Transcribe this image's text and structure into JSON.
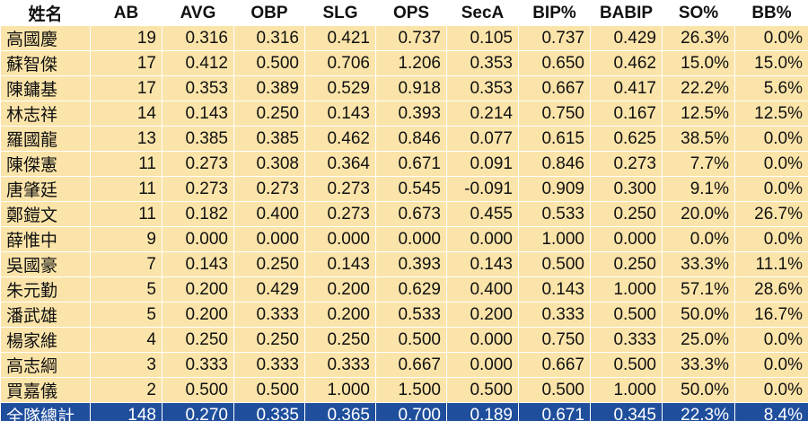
{
  "headers": [
    "姓名",
    "AB",
    "AVG",
    "OBP",
    "SLG",
    "OPS",
    "SecA",
    "BIP%",
    "BABIP",
    "SO%",
    "BB%"
  ],
  "rows": [
    [
      "高國慶",
      "19",
      "0.316",
      "0.316",
      "0.421",
      "0.737",
      "0.105",
      "0.737",
      "0.429",
      "26.3%",
      "0.0%"
    ],
    [
      "蘇智傑",
      "17",
      "0.412",
      "0.500",
      "0.706",
      "1.206",
      "0.353",
      "0.650",
      "0.462",
      "15.0%",
      "15.0%"
    ],
    [
      "陳鏞基",
      "17",
      "0.353",
      "0.389",
      "0.529",
      "0.918",
      "0.353",
      "0.667",
      "0.417",
      "22.2%",
      "5.6%"
    ],
    [
      "林志祥",
      "14",
      "0.143",
      "0.250",
      "0.143",
      "0.393",
      "0.214",
      "0.750",
      "0.167",
      "12.5%",
      "12.5%"
    ],
    [
      "羅國龍",
      "13",
      "0.385",
      "0.385",
      "0.462",
      "0.846",
      "0.077",
      "0.615",
      "0.625",
      "38.5%",
      "0.0%"
    ],
    [
      "陳傑憲",
      "11",
      "0.273",
      "0.308",
      "0.364",
      "0.671",
      "0.091",
      "0.846",
      "0.273",
      "7.7%",
      "0.0%"
    ],
    [
      "唐肇廷",
      "11",
      "0.273",
      "0.273",
      "0.273",
      "0.545",
      "-0.091",
      "0.909",
      "0.300",
      "9.1%",
      "0.0%"
    ],
    [
      "鄭鎧文",
      "11",
      "0.182",
      "0.400",
      "0.273",
      "0.673",
      "0.455",
      "0.533",
      "0.250",
      "20.0%",
      "26.7%"
    ],
    [
      "薛惟中",
      "9",
      "0.000",
      "0.000",
      "0.000",
      "0.000",
      "0.000",
      "1.000",
      "0.000",
      "0.0%",
      "0.0%"
    ],
    [
      "吳國豪",
      "7",
      "0.143",
      "0.250",
      "0.143",
      "0.393",
      "0.143",
      "0.500",
      "0.250",
      "33.3%",
      "11.1%"
    ],
    [
      "朱元勤",
      "5",
      "0.200",
      "0.429",
      "0.200",
      "0.629",
      "0.400",
      "0.143",
      "1.000",
      "57.1%",
      "28.6%"
    ],
    [
      "潘武雄",
      "5",
      "0.200",
      "0.333",
      "0.200",
      "0.533",
      "0.200",
      "0.333",
      "0.500",
      "50.0%",
      "16.7%"
    ],
    [
      "楊家維",
      "4",
      "0.250",
      "0.250",
      "0.250",
      "0.500",
      "0.000",
      "0.750",
      "0.333",
      "25.0%",
      "0.0%"
    ],
    [
      "高志綱",
      "3",
      "0.333",
      "0.333",
      "0.333",
      "0.667",
      "0.000",
      "0.667",
      "0.500",
      "33.3%",
      "0.0%"
    ],
    [
      "買嘉儀",
      "2",
      "0.500",
      "0.500",
      "1.000",
      "1.500",
      "0.500",
      "0.500",
      "1.000",
      "50.0%",
      "0.0%"
    ]
  ],
  "total": [
    "全隊總計",
    "148",
    "0.270",
    "0.335",
    "0.365",
    "0.700",
    "0.189",
    "0.671",
    "0.345",
    "22.3%",
    "8.4%"
  ],
  "colors": {
    "row_background": "#fbe4a9",
    "total_background": "#1f4e9c",
    "total_text": "#ffffff"
  }
}
